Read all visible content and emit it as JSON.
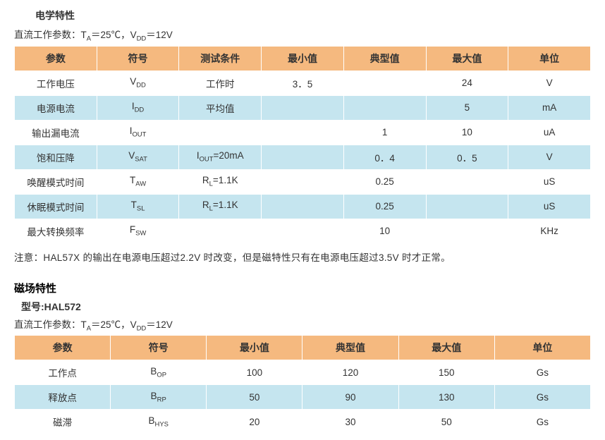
{
  "colors": {
    "header_bg": "#f5b97f",
    "row_even_bg": "#c5e5ef",
    "row_odd_bg": "#ffffff",
    "border": "#ffffff",
    "text": "#333333"
  },
  "section1": {
    "title": "电学特性",
    "conditions_prefix": "直流工作参数：T",
    "conditions_sub1": "A",
    "conditions_mid": "＝25℃，V",
    "conditions_sub2": "DD",
    "conditions_suffix": "＝12V",
    "headers": [
      "参数",
      "符号",
      "测试条件",
      "最小值",
      "典型值",
      "最大值",
      "单位"
    ],
    "rows": [
      {
        "param": "工作电压",
        "sym_main": "V",
        "sym_sub": "DD",
        "cond": "工作时",
        "min": "3．5",
        "typ": "",
        "max": "24",
        "unit": "V"
      },
      {
        "param": "电源电流",
        "sym_main": "I",
        "sym_sub": "DD",
        "cond": "平均值",
        "min": "",
        "typ": "",
        "max": "5",
        "unit": "mA"
      },
      {
        "param": "输出漏电流",
        "sym_main": "I",
        "sym_sub": "OUT",
        "cond": "",
        "min": "",
        "typ": "1",
        "max": "10",
        "unit": "uA"
      },
      {
        "param": "饱和压降",
        "sym_main": "V",
        "sym_sub": "SAT",
        "cond_main": "I",
        "cond_sub": "OUT",
        "cond_rest": "=20mA",
        "min": "",
        "typ": "0．4",
        "max": "0．5",
        "unit": "V"
      },
      {
        "param": "唤醒模式时间",
        "sym_main": "T",
        "sym_sub": "AW",
        "cond_main": "R",
        "cond_sub": "L",
        "cond_rest": "=1.1K",
        "min": "",
        "typ": "0.25",
        "max": "",
        "unit": "uS"
      },
      {
        "param": "休眠模式时间",
        "sym_main": "T",
        "sym_sub": "SL",
        "cond_main": "R",
        "cond_sub": "L",
        "cond_rest": "=1.1K",
        "min": "",
        "typ": "0.25",
        "max": "",
        "unit": "uS"
      },
      {
        "param": "最大转换频率",
        "sym_main": "F",
        "sym_sub": "SW",
        "cond": "",
        "min": "",
        "typ": "10",
        "max": "",
        "unit": "KHz"
      }
    ],
    "note": "注意：HAL57X 的输出在电源电压超过2.2V 时改变，但是磁特性只有在电源电压超过3.5V 时才正常。"
  },
  "section2": {
    "title": "磁场特性",
    "model_label": "型号:HAL572",
    "conditions_prefix": "直流工作参数：T",
    "conditions_sub1": "A",
    "conditions_mid": "＝25℃，V",
    "conditions_sub2": "DD",
    "conditions_suffix": "＝12V",
    "headers": [
      "参数",
      "符号",
      "最小值",
      "典型值",
      "最大值",
      "单位"
    ],
    "rows": [
      {
        "param": "工作点",
        "sym_main": "B",
        "sym_sub": "OP",
        "min": "100",
        "typ": "120",
        "max": "150",
        "unit": "Gs"
      },
      {
        "param": "释放点",
        "sym_main": "B",
        "sym_sub": "RP",
        "min": "50",
        "typ": "90",
        "max": "130",
        "unit": "Gs"
      },
      {
        "param": "磁滞",
        "sym_main": "B",
        "sym_sub": "HYS",
        "min": "20",
        "typ": "30",
        "max": "50",
        "unit": "Gs"
      }
    ]
  }
}
